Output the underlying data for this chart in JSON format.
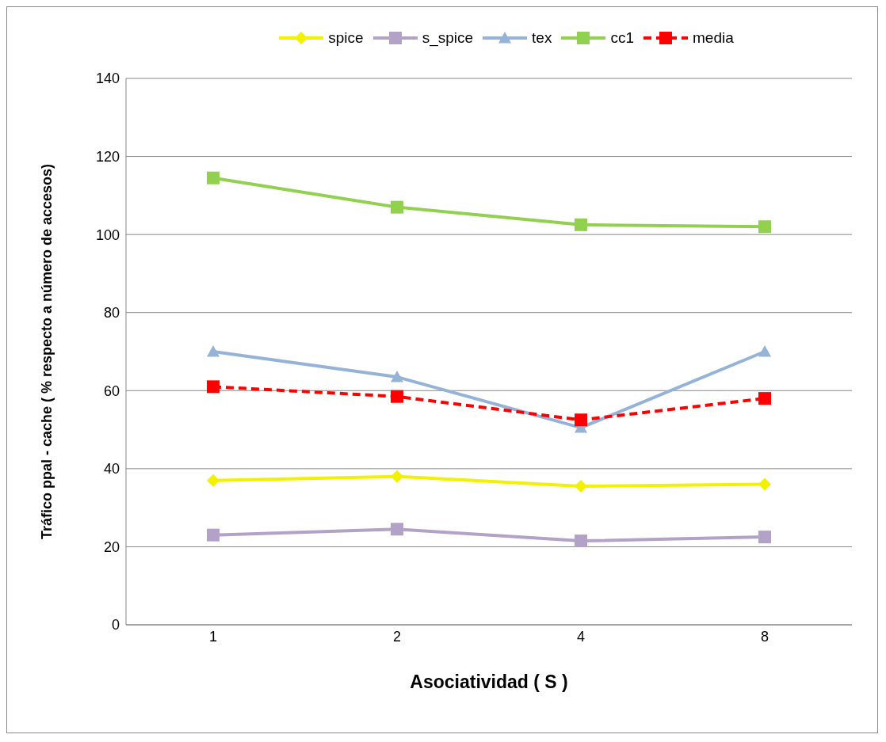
{
  "chart_data": {
    "type": "line",
    "xlabel": "Asociatividad ( S )",
    "ylabel": "Tráfico ppal - cache  ( % respecto a  número de accesos)",
    "categories": [
      "1",
      "2",
      "4",
      "8"
    ],
    "ylim": [
      0,
      140
    ],
    "yticks": [
      0,
      20,
      40,
      60,
      80,
      100,
      120,
      140
    ],
    "grid": "y",
    "legend": "top",
    "series": [
      {
        "name": "spice",
        "color": "#f2f200",
        "marker": "diamond",
        "values": [
          37,
          38,
          35.5,
          36
        ]
      },
      {
        "name": "s_spice",
        "color": "#b3a2c7",
        "marker": "square",
        "values": [
          23,
          24.5,
          21.5,
          22.5
        ]
      },
      {
        "name": "tex",
        "color": "#95b3d7",
        "marker": "triangle",
        "values": [
          70,
          63.5,
          50.5,
          70
        ]
      },
      {
        "name": "cc1",
        "color": "#92d050",
        "marker": "square",
        "values": [
          114.5,
          107,
          102.5,
          102
        ]
      },
      {
        "name": "media",
        "color": "#ff0000",
        "marker": "square",
        "line_style": "dashed",
        "values": [
          61,
          58.5,
          52.5,
          58
        ]
      }
    ]
  }
}
